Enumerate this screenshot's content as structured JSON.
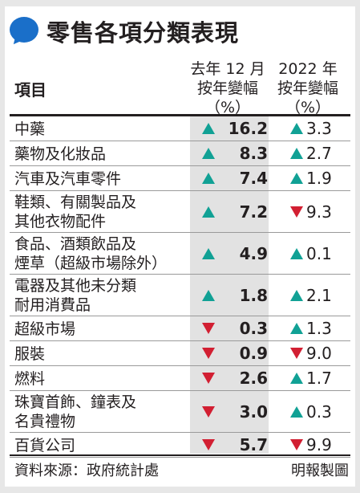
{
  "title": "零售各項分類表現",
  "header": {
    "item": "項目",
    "col1": [
      "去年 12 月",
      "按年變幅",
      "（%）"
    ],
    "col2": [
      "2022 年",
      "按年變幅",
      "（%）"
    ]
  },
  "colors": {
    "up": "#11a195",
    "down": "#d21f32",
    "brand": "#1a6fc9"
  },
  "rows": [
    {
      "label": [
        "中藥"
      ],
      "v1": "16.2",
      "d1": "up",
      "v2": "3.3",
      "d2": "up"
    },
    {
      "label": [
        "藥物及化妝品"
      ],
      "v1": "8.3",
      "d1": "up",
      "v2": "2.7",
      "d2": "up"
    },
    {
      "label": [
        "汽車及汽車零件"
      ],
      "v1": "7.4",
      "d1": "up",
      "v2": "1.9",
      "d2": "up"
    },
    {
      "label": [
        "鞋類、有關製品及",
        "其他衣物配件"
      ],
      "v1": "7.2",
      "d1": "up",
      "v2": "9.3",
      "d2": "down"
    },
    {
      "label": [
        "食品、酒類飲品及",
        "煙草（超級市場除外）"
      ],
      "v1": "4.9",
      "d1": "up",
      "v2": "0.1",
      "d2": "up"
    },
    {
      "label": [
        "電器及其他未分類",
        "耐用消費品"
      ],
      "v1": "1.8",
      "d1": "up",
      "v2": "2.1",
      "d2": "up"
    },
    {
      "label": [
        "超級市場"
      ],
      "v1": "0.3",
      "d1": "down",
      "v2": "1.3",
      "d2": "up"
    },
    {
      "label": [
        "服裝"
      ],
      "v1": "0.9",
      "d1": "down",
      "v2": "9.0",
      "d2": "down"
    },
    {
      "label": [
        "燃料"
      ],
      "v1": "2.6",
      "d1": "down",
      "v2": "1.7",
      "d2": "up"
    },
    {
      "label": [
        "珠寶首飾、鐘表及",
        "名貴禮物"
      ],
      "v1": "3.0",
      "d1": "down",
      "v2": "0.3",
      "d2": "up"
    },
    {
      "label": [
        "百貨公司"
      ],
      "v1": "5.7",
      "d1": "down",
      "v2": "9.9",
      "d2": "down"
    }
  ],
  "footer": {
    "source": "資料來源：政府統計處",
    "credit": "明報製圖"
  }
}
